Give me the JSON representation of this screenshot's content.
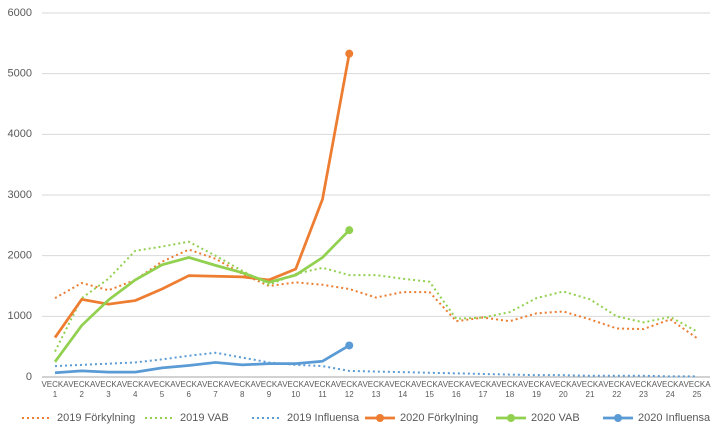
{
  "chart_data": {
    "type": "line",
    "categories": [
      "VECKA 1",
      "VECKA 2",
      "VECKA 3",
      "VECKA 4",
      "VECKA 5",
      "VECKA 6",
      "VECKA 7",
      "VECKA 8",
      "VECKA 9",
      "VECKA 10",
      "VECKA 11",
      "VECKA 12",
      "VECKA 13",
      "VECKA 14",
      "VECKA 15",
      "VECKA 16",
      "VECKA 17",
      "VECKA 18",
      "VECKA 19",
      "VECKA 20",
      "VECKA 21",
      "VECKA 22",
      "VECKA 23",
      "VECKA 24",
      "VECKA 25"
    ],
    "series": [
      {
        "name": "2019 Förkylning",
        "color": "#ed7d31",
        "style": "dotted",
        "values": [
          1300,
          1550,
          1430,
          1600,
          1900,
          2100,
          1950,
          1700,
          1500,
          1560,
          1520,
          1450,
          1310,
          1400,
          1400,
          920,
          980,
          920,
          1050,
          1080,
          950,
          800,
          790,
          950,
          640
        ]
      },
      {
        "name": "2019 VAB",
        "color": "#92d050",
        "style": "dotted",
        "values": [
          420,
          1300,
          1620,
          2080,
          2150,
          2230,
          2000,
          1750,
          1520,
          1700,
          1800,
          1680,
          1680,
          1620,
          1570,
          960,
          980,
          1070,
          1300,
          1410,
          1280,
          1000,
          900,
          990,
          750
        ]
      },
      {
        "name": "2019 Influensa",
        "color": "#5b9bd5",
        "style": "dotted",
        "values": [
          180,
          200,
          220,
          240,
          290,
          350,
          400,
          320,
          240,
          200,
          180,
          100,
          90,
          80,
          70,
          60,
          50,
          40,
          30,
          30,
          20,
          20,
          20,
          10,
          10
        ]
      },
      {
        "name": "2020 Förkylning",
        "color": "#ed7d31",
        "style": "solid",
        "end_marker": true,
        "values": [
          650,
          1280,
          1200,
          1260,
          1450,
          1670,
          1660,
          1650,
          1600,
          1780,
          2930,
          5330,
          null,
          null,
          null,
          null,
          null,
          null,
          null,
          null,
          null,
          null,
          null,
          null,
          null
        ]
      },
      {
        "name": "2020 VAB",
        "color": "#92d050",
        "style": "solid",
        "end_marker": true,
        "values": [
          250,
          850,
          1270,
          1600,
          1850,
          1970,
          1840,
          1720,
          1560,
          1680,
          1970,
          2420,
          null,
          null,
          null,
          null,
          null,
          null,
          null,
          null,
          null,
          null,
          null,
          null,
          null
        ]
      },
      {
        "name": "2020 Influensa",
        "color": "#5b9bd5",
        "style": "solid",
        "end_marker": true,
        "values": [
          70,
          100,
          80,
          80,
          150,
          190,
          240,
          200,
          220,
          220,
          260,
          520,
          null,
          null,
          null,
          null,
          null,
          null,
          null,
          null,
          null,
          null,
          null,
          null,
          null
        ]
      }
    ],
    "ylim": [
      0,
      6000
    ],
    "yticks": [
      0,
      1000,
      2000,
      3000,
      4000,
      5000,
      6000
    ],
    "grid": true,
    "legend": "bottom"
  }
}
